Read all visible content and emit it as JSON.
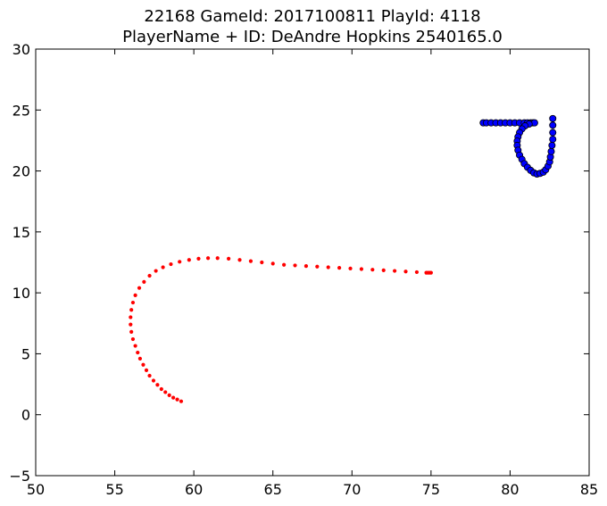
{
  "chart_data": {
    "type": "scatter",
    "title_lines": [
      "22168 GameId: 2017100811 PlayId: 4118",
      "PlayerName + ID: DeAndre Hopkins 2540165.0"
    ],
    "xlabel": "",
    "ylabel": "",
    "xlim": [
      50,
      85
    ],
    "ylim": [
      -5,
      30
    ],
    "xticks": [
      50,
      55,
      60,
      65,
      70,
      75,
      80,
      85
    ],
    "yticks": [
      -5,
      0,
      5,
      10,
      15,
      20,
      25,
      30
    ],
    "grid": false,
    "legend": "none",
    "series": [
      {
        "color": "#ff0000",
        "marker": "small-dot",
        "points": [
          [
            59.2,
            1.1
          ],
          [
            58.95,
            1.25
          ],
          [
            58.7,
            1.4
          ],
          [
            58.45,
            1.6
          ],
          [
            58.2,
            1.85
          ],
          [
            57.95,
            2.1
          ],
          [
            57.7,
            2.45
          ],
          [
            57.45,
            2.8
          ],
          [
            57.2,
            3.2
          ],
          [
            57.0,
            3.65
          ],
          [
            56.8,
            4.1
          ],
          [
            56.6,
            4.6
          ],
          [
            56.45,
            5.1
          ],
          [
            56.3,
            5.65
          ],
          [
            56.15,
            6.2
          ],
          [
            56.05,
            6.8
          ],
          [
            56.0,
            7.4
          ],
          [
            56.0,
            8.0
          ],
          [
            56.05,
            8.6
          ],
          [
            56.15,
            9.2
          ],
          [
            56.3,
            9.8
          ],
          [
            56.55,
            10.4
          ],
          [
            56.85,
            10.9
          ],
          [
            57.2,
            11.4
          ],
          [
            57.6,
            11.8
          ],
          [
            58.05,
            12.1
          ],
          [
            58.55,
            12.35
          ],
          [
            59.1,
            12.55
          ],
          [
            59.7,
            12.7
          ],
          [
            60.3,
            12.8
          ],
          [
            60.9,
            12.85
          ],
          [
            61.5,
            12.85
          ],
          [
            62.2,
            12.8
          ],
          [
            62.9,
            12.7
          ],
          [
            63.6,
            12.6
          ],
          [
            64.3,
            12.5
          ],
          [
            65.0,
            12.4
          ],
          [
            65.7,
            12.3
          ],
          [
            66.4,
            12.25
          ],
          [
            67.1,
            12.2
          ],
          [
            67.8,
            12.15
          ],
          [
            68.5,
            12.1
          ],
          [
            69.2,
            12.05
          ],
          [
            69.9,
            12.0
          ],
          [
            70.6,
            11.95
          ],
          [
            71.3,
            11.9
          ],
          [
            72.0,
            11.85
          ],
          [
            72.7,
            11.8
          ],
          [
            73.4,
            11.75
          ],
          [
            74.1,
            11.7
          ],
          [
            74.7,
            11.65
          ],
          [
            74.8,
            11.65
          ],
          [
            74.9,
            11.65
          ],
          [
            75.0,
            11.65
          ]
        ]
      },
      {
        "color": "#0000ff",
        "marker": "circle",
        "points": [
          [
            78.3,
            23.95
          ],
          [
            78.5,
            23.95
          ],
          [
            78.8,
            23.95
          ],
          [
            79.1,
            23.95
          ],
          [
            79.4,
            23.95
          ],
          [
            79.7,
            23.95
          ],
          [
            80.0,
            23.95
          ],
          [
            80.3,
            23.95
          ],
          [
            80.6,
            23.95
          ],
          [
            80.9,
            23.95
          ],
          [
            81.1,
            23.95
          ],
          [
            81.3,
            23.95
          ],
          [
            81.45,
            23.95
          ],
          [
            81.55,
            23.95
          ],
          [
            81.2,
            23.85
          ],
          [
            80.95,
            23.7
          ],
          [
            80.75,
            23.45
          ],
          [
            80.6,
            23.15
          ],
          [
            80.5,
            22.8
          ],
          [
            80.45,
            22.45
          ],
          [
            80.45,
            22.1
          ],
          [
            80.5,
            21.7
          ],
          [
            80.6,
            21.3
          ],
          [
            80.75,
            20.95
          ],
          [
            80.9,
            20.6
          ],
          [
            81.1,
            20.3
          ],
          [
            81.3,
            20.05
          ],
          [
            81.5,
            19.85
          ],
          [
            81.7,
            19.75
          ],
          [
            81.9,
            19.8
          ],
          [
            82.1,
            19.9
          ],
          [
            82.25,
            20.1
          ],
          [
            82.4,
            20.4
          ],
          [
            82.5,
            20.75
          ],
          [
            82.55,
            21.15
          ],
          [
            82.6,
            21.6
          ],
          [
            82.65,
            22.1
          ],
          [
            82.7,
            22.6
          ],
          [
            82.7,
            23.15
          ],
          [
            82.7,
            23.75
          ],
          [
            82.7,
            24.3
          ]
        ]
      }
    ]
  }
}
